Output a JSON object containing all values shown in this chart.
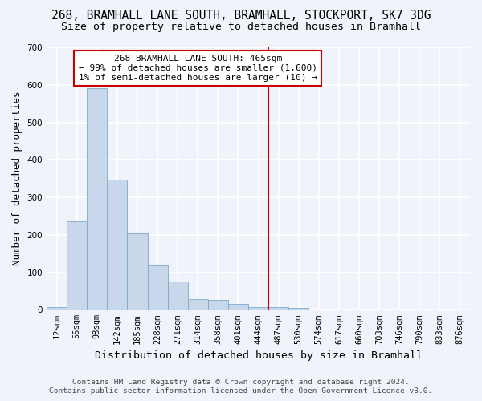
{
  "title_line1": "268, BRAMHALL LANE SOUTH, BRAMHALL, STOCKPORT, SK7 3DG",
  "title_line2": "Size of property relative to detached houses in Bramhall",
  "xlabel": "Distribution of detached houses by size in Bramhall",
  "ylabel": "Number of detached properties",
  "bar_labels": [
    "12sqm",
    "55sqm",
    "98sqm",
    "142sqm",
    "185sqm",
    "228sqm",
    "271sqm",
    "314sqm",
    "358sqm",
    "401sqm",
    "444sqm",
    "487sqm",
    "530sqm",
    "574sqm",
    "617sqm",
    "660sqm",
    "703sqm",
    "746sqm",
    "790sqm",
    "833sqm",
    "876sqm"
  ],
  "bar_values": [
    7,
    236,
    590,
    347,
    204,
    118,
    75,
    28,
    27,
    15,
    8,
    7,
    5,
    0,
    0,
    0,
    0,
    0,
    0,
    0,
    0
  ],
  "bar_color": "#c8d8ea",
  "bar_edge_color": "#7aaac8",
  "vline_x_index": 11,
  "vline_color": "#cc0000",
  "annotation_text": "268 BRAMHALL LANE SOUTH: 465sqm\n← 99% of detached houses are smaller (1,600)\n1% of semi-detached houses are larger (10) →",
  "annotation_box_color": "#ffffff",
  "annotation_box_edge": "#cc0000",
  "ylim": [
    0,
    700
  ],
  "yticks": [
    0,
    100,
    200,
    300,
    400,
    500,
    600,
    700
  ],
  "bg_color": "#f0f4fa",
  "plot_bg_color": "#f0f4fa",
  "footer_line1": "Contains HM Land Registry data © Crown copyright and database right 2024.",
  "footer_line2": "Contains public sector information licensed under the Open Government Licence v3.0.",
  "grid_color": "#ffffff",
  "title_fontsize": 10.5,
  "subtitle_fontsize": 9.5,
  "axis_label_fontsize": 9,
  "tick_fontsize": 7.5,
  "annotation_fontsize": 8,
  "footer_fontsize": 6.8
}
